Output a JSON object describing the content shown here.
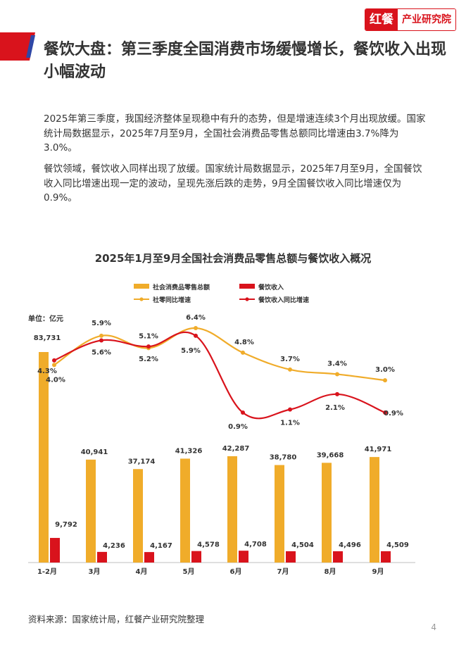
{
  "brand": {
    "mark": "红餐",
    "name": "产业研究院",
    "color": "#d9131c"
  },
  "header": {
    "title": "餐饮大盘：第三季度全国消费市场缓慢增长，餐饮收入出现小幅波动"
  },
  "body": {
    "paragraph_1": "2025年第三季度，我国经济整体呈现稳中有升的态势，但是增速连续3个月出现放缓。国家统计局数据显示，2025年7月至9月，全国社会消费品零售总额同比增速由3.7%降为3.0%。",
    "paragraph_2": "餐饮领域，餐饮收入同样出现了放缓。国家统计局数据显示，2025年7月至9月，全国餐饮收入同比增速出现一定的波动，呈现先涨后跌的走势，9月全国餐饮收入同比增速仅为0.9%。"
  },
  "chart_data": {
    "type": "bar",
    "title": "2025年1月至9月全国社会消费品零售总额与餐饮收入概况",
    "unit_label": "单位：亿元",
    "categories": [
      "1-2月",
      "3月",
      "4月",
      "5月",
      "6月",
      "7月",
      "8月",
      "9月"
    ],
    "series": [
      {
        "name": "社会消费品零售总额",
        "kind": "bar",
        "color": "#f0ac2a",
        "values": [
          83731,
          40941,
          37174,
          41326,
          42287,
          38780,
          39668,
          41971
        ],
        "labels": [
          "83,731",
          "40,941",
          "37,174",
          "41,326",
          "42,287",
          "38,780",
          "39,668",
          "41,971"
        ]
      },
      {
        "name": "餐饮收入",
        "kind": "bar",
        "color": "#d9131c",
        "values": [
          9792,
          4236,
          4167,
          4578,
          4708,
          4504,
          4496,
          4509
        ],
        "labels": [
          "9,792",
          "4,236",
          "4,167",
          "4,578",
          "4,708",
          "4,504",
          "4,496",
          "4,509"
        ]
      },
      {
        "name": "社零同比增速",
        "kind": "line",
        "color": "#f0ac2a",
        "values": [
          4.0,
          5.9,
          5.1,
          6.4,
          4.8,
          3.7,
          3.4,
          3.0
        ],
        "labels": [
          "4.0%",
          "5.9%",
          "5.1%",
          "6.4%",
          "4.8%",
          "3.7%",
          "3.4%",
          "3.0%"
        ]
      },
      {
        "name": "餐饮收入同比增速",
        "kind": "line",
        "color": "#d9131c",
        "values": [
          4.3,
          5.6,
          5.2,
          5.9,
          0.9,
          1.1,
          2.1,
          0.9
        ],
        "labels": [
          "4.3%",
          "5.6%",
          "5.2%",
          "5.9%",
          "0.9%",
          "1.1%",
          "2.1%",
          "0.9%"
        ]
      }
    ],
    "legend_position": "top",
    "grid": false
  },
  "footer": {
    "source": "资料来源：国家统计局，红餐产业研究院整理",
    "page_number": "4"
  }
}
